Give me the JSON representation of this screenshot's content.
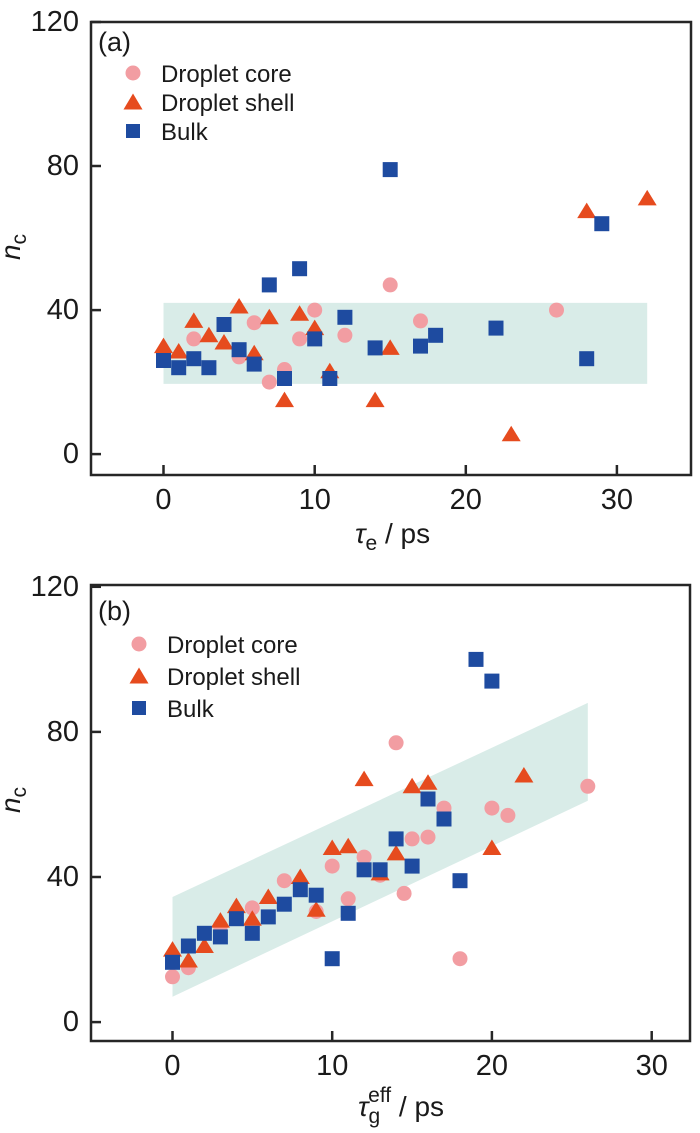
{
  "figure": {
    "background": "#ffffff",
    "text_color": "#1a1a1a",
    "axis_color": "#262626"
  },
  "chart_data": [
    {
      "type": "scatter",
      "panel_tag": "(a)",
      "xlabel": {
        "symbol": "τ",
        "sub": "e",
        "sup": "",
        "unit": " / ps"
      },
      "ylabel": {
        "symbol": "n̄",
        "sub": "c"
      },
      "x_ticks": [
        0,
        10,
        20,
        30
      ],
      "y_ticks": [
        0,
        40,
        80,
        120
      ],
      "xlim": [
        -4.8,
        34.9
      ],
      "ylim": [
        -5.8,
        120
      ],
      "grid": false,
      "legend_position": "top-left-inside",
      "band": {
        "shape": "polygon",
        "color": "#d9ece8",
        "points": [
          [
            0,
            19.5
          ],
          [
            32,
            19.5
          ],
          [
            32,
            42
          ],
          [
            0,
            42
          ]
        ]
      },
      "series": [
        {
          "name": "Droplet core",
          "marker": "circle",
          "color": "#f29da2",
          "points": [
            [
              2,
              32
            ],
            [
              5,
              27
            ],
            [
              6,
              36.5
            ],
            [
              7,
              20
            ],
            [
              8,
              23.5
            ],
            [
              9,
              32
            ],
            [
              10,
              40
            ],
            [
              12,
              33
            ],
            [
              15,
              47
            ],
            [
              17,
              37
            ],
            [
              26,
              40
            ]
          ]
        },
        {
          "name": "Droplet shell",
          "marker": "triangle",
          "color": "#e64b1e",
          "points": [
            [
              0,
              30
            ],
            [
              1,
              28.5
            ],
            [
              2,
              37
            ],
            [
              3,
              33
            ],
            [
              4,
              31
            ],
            [
              5,
              41
            ],
            [
              6,
              28
            ],
            [
              7,
              38
            ],
            [
              8,
              15
            ],
            [
              9,
              39
            ],
            [
              10,
              35
            ],
            [
              11,
              23
            ],
            [
              14,
              15
            ],
            [
              15,
              29.5
            ],
            [
              23,
              5.5
            ],
            [
              28,
              67.5
            ],
            [
              32,
              71
            ]
          ]
        },
        {
          "name": "Bulk",
          "marker": "square",
          "color": "#1e4ba0",
          "points": [
            [
              0,
              26
            ],
            [
              1,
              24
            ],
            [
              2,
              26.5
            ],
            [
              3,
              24
            ],
            [
              4,
              36
            ],
            [
              5,
              29
            ],
            [
              6,
              25
            ],
            [
              7,
              47
            ],
            [
              8,
              21
            ],
            [
              9,
              51.5
            ],
            [
              10,
              32
            ],
            [
              11,
              21
            ],
            [
              12,
              38
            ],
            [
              14,
              29.5
            ],
            [
              15,
              79
            ],
            [
              17,
              30
            ],
            [
              18,
              33
            ],
            [
              22,
              35
            ],
            [
              28,
              26.5
            ],
            [
              29,
              64
            ]
          ]
        }
      ]
    },
    {
      "type": "scatter",
      "panel_tag": "(b)",
      "xlabel": {
        "symbol": "τ",
        "sub": "g",
        "sup": "eff",
        "unit": " / ps"
      },
      "ylabel": {
        "symbol": "n̄",
        "sub": "c"
      },
      "x_ticks": [
        0,
        10,
        20,
        30
      ],
      "y_ticks": [
        0,
        40,
        80,
        120
      ],
      "xlim": [
        -5.1,
        32.4
      ],
      "ylim": [
        -5.2,
        120.5
      ],
      "grid": false,
      "legend_position": "top-left-inside",
      "band": {
        "shape": "polygon",
        "color": "#d9ece8",
        "points": [
          [
            0,
            7
          ],
          [
            26,
            61
          ],
          [
            26,
            88
          ],
          [
            0,
            34.5
          ]
        ]
      },
      "series": [
        {
          "name": "Droplet core",
          "marker": "circle",
          "color": "#f29da2",
          "points": [
            [
              0,
              12.5
            ],
            [
              1,
              15
            ],
            [
              3,
              26.5
            ],
            [
              5,
              31.5
            ],
            [
              7,
              39
            ],
            [
              9,
              30.5
            ],
            [
              10,
              43
            ],
            [
              11,
              34
            ],
            [
              12,
              45.5
            ],
            [
              13,
              40.5
            ],
            [
              14,
              77
            ],
            [
              14.5,
              35.5
            ],
            [
              15,
              50.5
            ],
            [
              16,
              51
            ],
            [
              17,
              59
            ],
            [
              18,
              17.5
            ],
            [
              20,
              59
            ],
            [
              21,
              57
            ],
            [
              26,
              65
            ]
          ]
        },
        {
          "name": "Droplet shell",
          "marker": "triangle",
          "color": "#e64b1e",
          "points": [
            [
              0,
              20
            ],
            [
              1,
              17
            ],
            [
              2,
              21
            ],
            [
              3,
              28
            ],
            [
              4,
              32
            ],
            [
              5,
              28.5
            ],
            [
              6,
              34.5
            ],
            [
              8,
              40
            ],
            [
              9,
              31
            ],
            [
              10,
              48
            ],
            [
              11,
              48.5
            ],
            [
              12,
              67
            ],
            [
              13,
              41
            ],
            [
              14,
              46.5
            ],
            [
              15,
              65
            ],
            [
              16,
              66
            ],
            [
              20,
              48
            ],
            [
              22,
              68
            ]
          ]
        },
        {
          "name": "Bulk",
          "marker": "square",
          "color": "#1e4ba0",
          "points": [
            [
              0,
              16.5
            ],
            [
              1,
              21
            ],
            [
              2,
              24.5
            ],
            [
              3,
              23.5
            ],
            [
              4,
              28.5
            ],
            [
              5,
              24.5
            ],
            [
              6,
              29
            ],
            [
              7,
              32.5
            ],
            [
              8,
              36.5
            ],
            [
              9,
              35
            ],
            [
              10,
              17.5
            ],
            [
              11,
              30
            ],
            [
              12,
              42
            ],
            [
              13,
              42
            ],
            [
              14,
              50.5
            ],
            [
              15,
              43
            ],
            [
              16,
              61.5
            ],
            [
              17,
              56
            ],
            [
              18,
              39
            ],
            [
              19,
              100
            ],
            [
              20,
              94
            ]
          ]
        }
      ]
    }
  ]
}
